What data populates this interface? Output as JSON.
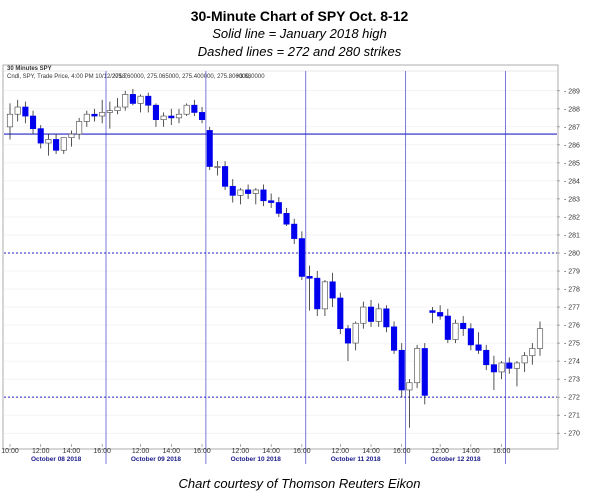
{
  "page": {
    "title": "30-Minute Chart of SPY Oct. 8-12",
    "subtitle1": "Solid line = January 2018 high",
    "subtitle2": "Dashed lines = 272 and 280 strikes",
    "footer": "Chart courtesy of Thomson Reuters Eikon"
  },
  "chart_data": {
    "type": "candlestick",
    "panel_title": "30 Minutes SPY",
    "legend_prefix": "Cndl, SPY, Trade Price, 4:00 PM 10/12/2018,",
    "legend_values": "275.760000, 275.065000, 275.400000, 275.800000,",
    "legend_change": "+3.630000",
    "ylim": [
      269.4,
      289.6
    ],
    "y_ticks": [
      270,
      271,
      272,
      273,
      274,
      275,
      276,
      277,
      278,
      279,
      280,
      281,
      282,
      283,
      284,
      285,
      286,
      287,
      288,
      289
    ],
    "x_tick_labels": [
      "10:00",
      "12:00",
      "14:00",
      "16:00",
      "12:00",
      "14:00",
      "16:00",
      "12:00",
      "14:00",
      "16:00",
      "12:00",
      "14:00",
      "16:00",
      "12:00",
      "14:00",
      "16:00"
    ],
    "x_tick_index": [
      0,
      4,
      8,
      12,
      17,
      21,
      25,
      30,
      34,
      38,
      43,
      47,
      51,
      56,
      60,
      64
    ],
    "day_labels": [
      "October 08 2018",
      "October 09 2018",
      "October 10 2018",
      "October 11 2018",
      "October 12 2018"
    ],
    "day_label_index": [
      6,
      19,
      32,
      45,
      58
    ],
    "session_dividers": [
      12.5,
      25.5,
      38.5,
      51.5,
      64.5
    ],
    "reference_lines": [
      {
        "value": 286.6,
        "style": "solid"
      },
      {
        "value": 280,
        "style": "dashed"
      },
      {
        "value": 272,
        "style": "dashed"
      }
    ],
    "candles": [
      {
        "o": 287.0,
        "h": 288.3,
        "l": 286.3,
        "c": 287.7
      },
      {
        "o": 287.7,
        "h": 288.5,
        "l": 287.3,
        "c": 288.1
      },
      {
        "o": 288.1,
        "h": 288.4,
        "l": 287.2,
        "c": 287.6
      },
      {
        "o": 287.6,
        "h": 287.9,
        "l": 286.6,
        "c": 286.9
      },
      {
        "o": 286.9,
        "h": 287.1,
        "l": 285.8,
        "c": 286.1
      },
      {
        "o": 286.1,
        "h": 286.6,
        "l": 285.4,
        "c": 286.3
      },
      {
        "o": 286.3,
        "h": 286.6,
        "l": 285.5,
        "c": 285.7
      },
      {
        "o": 285.7,
        "h": 286.4,
        "l": 285.5,
        "c": 286.4
      },
      {
        "o": 286.4,
        "h": 286.8,
        "l": 285.9,
        "c": 286.6
      },
      {
        "o": 286.6,
        "h": 287.5,
        "l": 286.3,
        "c": 287.3
      },
      {
        "o": 287.3,
        "h": 287.9,
        "l": 287.0,
        "c": 287.7
      },
      {
        "o": 287.7,
        "h": 288.0,
        "l": 287.3,
        "c": 287.6
      },
      {
        "o": 287.6,
        "h": 288.5,
        "l": 287.2,
        "c": 287.8
      },
      {
        "o": 287.8,
        "h": 288.4,
        "l": 286.9,
        "c": 287.9
      },
      {
        "o": 287.9,
        "h": 288.6,
        "l": 287.7,
        "c": 288.1
      },
      {
        "o": 288.1,
        "h": 289.0,
        "l": 287.9,
        "c": 288.8
      },
      {
        "o": 288.8,
        "h": 289.1,
        "l": 288.2,
        "c": 288.3
      },
      {
        "o": 288.3,
        "h": 288.8,
        "l": 287.8,
        "c": 288.7
      },
      {
        "o": 288.7,
        "h": 288.9,
        "l": 287.8,
        "c": 288.2
      },
      {
        "o": 288.2,
        "h": 288.3,
        "l": 287.0,
        "c": 287.4
      },
      {
        "o": 287.4,
        "h": 287.8,
        "l": 287.0,
        "c": 287.6
      },
      {
        "o": 287.6,
        "h": 288.0,
        "l": 287.1,
        "c": 287.5
      },
      {
        "o": 287.5,
        "h": 288.0,
        "l": 287.2,
        "c": 287.7
      },
      {
        "o": 287.7,
        "h": 288.3,
        "l": 287.6,
        "c": 288.2
      },
      {
        "o": 288.2,
        "h": 288.5,
        "l": 287.6,
        "c": 287.8
      },
      {
        "o": 287.8,
        "h": 288.1,
        "l": 287.2,
        "c": 287.4
      },
      {
        "o": 286.8,
        "h": 287.0,
        "l": 284.6,
        "c": 284.8
      },
      {
        "o": 284.8,
        "h": 285.1,
        "l": 284.3,
        "c": 284.8
      },
      {
        "o": 284.8,
        "h": 285.1,
        "l": 283.5,
        "c": 283.7
      },
      {
        "o": 283.7,
        "h": 284.1,
        "l": 282.8,
        "c": 283.2
      },
      {
        "o": 283.2,
        "h": 283.6,
        "l": 282.7,
        "c": 283.5
      },
      {
        "o": 283.5,
        "h": 283.8,
        "l": 283.0,
        "c": 283.3
      },
      {
        "o": 283.3,
        "h": 283.6,
        "l": 282.7,
        "c": 283.5
      },
      {
        "o": 283.5,
        "h": 283.8,
        "l": 282.6,
        "c": 282.9
      },
      {
        "o": 282.9,
        "h": 283.3,
        "l": 282.5,
        "c": 282.8
      },
      {
        "o": 282.8,
        "h": 283.1,
        "l": 282.0,
        "c": 282.2
      },
      {
        "o": 282.2,
        "h": 282.5,
        "l": 281.5,
        "c": 281.6
      },
      {
        "o": 281.6,
        "h": 281.9,
        "l": 280.5,
        "c": 280.8
      },
      {
        "o": 280.8,
        "h": 281.2,
        "l": 278.5,
        "c": 278.7
      },
      {
        "o": 278.7,
        "h": 279.3,
        "l": 276.8,
        "c": 278.6
      },
      {
        "o": 278.6,
        "h": 279.0,
        "l": 276.5,
        "c": 276.9
      },
      {
        "o": 276.9,
        "h": 278.5,
        "l": 276.5,
        "c": 278.4
      },
      {
        "o": 278.4,
        "h": 278.9,
        "l": 277.0,
        "c": 277.5
      },
      {
        "o": 277.5,
        "h": 277.8,
        "l": 275.5,
        "c": 275.8
      },
      {
        "o": 275.8,
        "h": 276.0,
        "l": 274.0,
        "c": 275.0
      },
      {
        "o": 275.0,
        "h": 276.2,
        "l": 274.6,
        "c": 276.1
      },
      {
        "o": 276.1,
        "h": 277.3,
        "l": 275.8,
        "c": 277.0
      },
      {
        "o": 277.0,
        "h": 277.4,
        "l": 275.9,
        "c": 276.2
      },
      {
        "o": 276.2,
        "h": 277.2,
        "l": 275.9,
        "c": 276.9
      },
      {
        "o": 276.9,
        "h": 277.1,
        "l": 275.6,
        "c": 275.9
      },
      {
        "o": 275.9,
        "h": 276.2,
        "l": 274.4,
        "c": 274.6
      },
      {
        "o": 274.6,
        "h": 275.0,
        "l": 272.0,
        "c": 272.4
      },
      {
        "o": 272.4,
        "h": 273.0,
        "l": 270.3,
        "c": 272.8
      },
      {
        "o": 272.8,
        "h": 274.9,
        "l": 272.5,
        "c": 274.7
      },
      {
        "o": 274.7,
        "h": 275.0,
        "l": 271.6,
        "c": 272.1
      },
      {
        "o": 276.8,
        "h": 277.0,
        "l": 276.1,
        "c": 276.7
      },
      {
        "o": 276.7,
        "h": 277.1,
        "l": 276.3,
        "c": 276.5
      },
      {
        "o": 276.5,
        "h": 276.9,
        "l": 275.0,
        "c": 275.2
      },
      {
        "o": 275.2,
        "h": 276.3,
        "l": 275.0,
        "c": 276.1
      },
      {
        "o": 276.1,
        "h": 276.5,
        "l": 275.4,
        "c": 275.8
      },
      {
        "o": 275.8,
        "h": 276.1,
        "l": 274.6,
        "c": 274.9
      },
      {
        "o": 274.9,
        "h": 275.6,
        "l": 274.4,
        "c": 274.6
      },
      {
        "o": 274.6,
        "h": 274.9,
        "l": 273.5,
        "c": 273.8
      },
      {
        "o": 273.8,
        "h": 274.3,
        "l": 272.4,
        "c": 273.4
      },
      {
        "o": 273.4,
        "h": 274.0,
        "l": 273.0,
        "c": 273.9
      },
      {
        "o": 273.9,
        "h": 274.2,
        "l": 273.3,
        "c": 273.6
      },
      {
        "o": 273.6,
        "h": 274.0,
        "l": 272.6,
        "c": 273.9
      },
      {
        "o": 273.9,
        "h": 274.5,
        "l": 273.4,
        "c": 274.3
      },
      {
        "o": 274.3,
        "h": 275.0,
        "l": 273.8,
        "c": 274.7
      },
      {
        "o": 274.7,
        "h": 276.2,
        "l": 274.3,
        "c": 275.8
      }
    ],
    "colors": {
      "up": "#ffffff",
      "down": "#0000ee",
      "wick": "#2a2a2a",
      "ref_line": "#2323c8",
      "divider": "#6b6bd6",
      "grid": "#e8e8f0",
      "frame": "#9a9a9a"
    }
  }
}
